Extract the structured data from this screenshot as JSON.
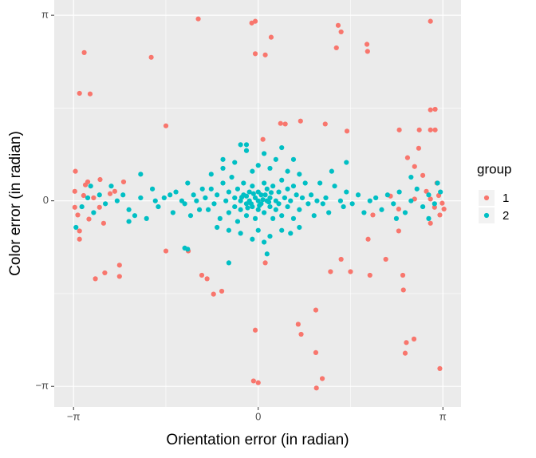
{
  "chart_data": {
    "type": "scatter",
    "x_label": "Orientation error (in radian)",
    "y_label": "Color error (in radian)",
    "legend_title": "group",
    "legend_position": "right",
    "grid": true,
    "xlim": [
      -3.47,
      3.45
    ],
    "ylim": [
      -3.49,
      3.4
    ],
    "xticks": [
      {
        "value": -3.14159,
        "label": "−π"
      },
      0,
      {
        "value": 3.14159,
        "label": "π"
      }
    ],
    "yticks": [
      {
        "value": -3.14159,
        "label": "−π"
      },
      0,
      {
        "value": 3.14159,
        "label": "π"
      }
    ],
    "xminor": [
      -1.5708,
      1.5708
    ],
    "yminor": [
      -1.5708,
      1.5708
    ],
    "series": [
      {
        "name": "1",
        "color": "#F8766D",
        "x": [
          -1.02,
          -0.11,
          -0.05,
          0.22,
          1.36,
          1.41,
          1.85,
          1.86,
          2.93,
          -2.96,
          -3.04,
          -2.86,
          -1.82,
          -0.05,
          0.12,
          1.33,
          -1.57,
          0.08,
          0.38,
          0.46,
          0.72,
          1.14,
          1.51,
          2.4,
          2.74,
          2.93,
          3.01,
          2.93,
          2.73,
          2.54,
          2.66,
          3.01,
          -2.36,
          -2.36,
          -2.77,
          -2.61,
          -1.19,
          -0.96,
          -0.87,
          -0.76,
          -0.62,
          -1.57,
          -0.05,
          -0.08,
          0,
          0.68,
          0.73,
          0.98,
          0.98,
          1.09,
          0.99,
          1.23,
          1.57,
          1.9,
          2.17,
          2.46,
          2.47,
          2.52,
          2.65,
          2.5,
          3.09,
          1.87,
          2.39,
          1.95,
          0.12,
          1.41,
          -3.12,
          -3.12,
          -3.07,
          -3.04,
          -2.97,
          -2.9,
          -2.8,
          -2.7,
          -2.63,
          -2.52,
          -2.44,
          -3.11,
          -3.04,
          -2.69,
          -2.88,
          -2.94,
          -2.29,
          2.86,
          2.93,
          3.0,
          3.07,
          3.13,
          2.8,
          3.04,
          3.09,
          2.66,
          2.93,
          3.16,
          2.39,
          2.25
        ],
        "values": [
          3.08,
          3.01,
          3.04,
          2.77,
          2.97,
          2.86,
          2.65,
          2.53,
          3.04,
          2.51,
          1.82,
          1.81,
          2.43,
          2.49,
          2.47,
          2.59,
          1.27,
          1.04,
          1.31,
          1.3,
          1.35,
          1.3,
          1.18,
          1.2,
          1.2,
          1.54,
          1.55,
          1.2,
          0.89,
          0.73,
          0.58,
          1.2,
          -1.09,
          -1.28,
          -1.32,
          -1.22,
          -0.85,
          -1.26,
          -1.32,
          -1.58,
          -1.53,
          -0.85,
          -2.19,
          -3.05,
          -3.08,
          -2.09,
          -2.26,
          -1.85,
          -2.57,
          -3.01,
          -3.17,
          -1.2,
          -1.2,
          -1.26,
          -0.99,
          -1.26,
          -1.51,
          -2.4,
          -2.34,
          -2.58,
          -2.84,
          -0.65,
          -0.51,
          -0.24,
          -1.05,
          -0.99,
          0.16,
          -0.11,
          -0.24,
          -0.51,
          0.09,
          0.32,
          0.05,
          -0.11,
          -0.38,
          0.12,
          0.16,
          0.5,
          -0.65,
          0.36,
          -0.31,
          0.27,
          0.32,
          0.16,
          0.03,
          -0.11,
          0.09,
          -0.04,
          0.43,
          0.3,
          -0.24,
          0.03,
          -0.38,
          -0.14,
          -0.14,
          0.08
        ]
      },
      {
        "name": "2",
        "color": "#00BFC4",
        "x": [
          -3.1,
          -3.0,
          -2.9,
          -2.8,
          -2.7,
          -2.6,
          -2.5,
          -2.4,
          -2.3,
          -2.2,
          -2.1,
          -2.0,
          -1.9,
          -1.8,
          -1.75,
          -1.7,
          -1.6,
          -1.5,
          -1.45,
          -1.4,
          -1.3,
          -1.25,
          -1.2,
          -1.15,
          -1.1,
          -1.05,
          -1.0,
          -0.95,
          -1.2,
          -1.25,
          -0.5,
          -0.6,
          -0.3,
          -2.2,
          -2.85,
          -2.0,
          3.1,
          3.0,
          2.9,
          2.8,
          2.7,
          2.6,
          2.5,
          2.4,
          2.3,
          2.2,
          2.1,
          2.0,
          1.9,
          1.8,
          1.7,
          1.6,
          1.5,
          1.45,
          1.4,
          1.3,
          1.2,
          1.15,
          1.1,
          1.05,
          1.0,
          0.95,
          1.5,
          2.6,
          2.9,
          3.05,
          1.25,
          2.35,
          -0.9,
          -0.85,
          -0.8,
          -0.75,
          -0.7,
          -0.65,
          -0.6,
          -0.55,
          -0.5,
          -0.5,
          -0.45,
          -0.4,
          -0.4,
          -0.35,
          -0.35,
          -0.3,
          -0.3,
          -0.25,
          -0.25,
          -0.2,
          -0.2,
          -0.15,
          -0.15,
          -0.1,
          -0.1,
          -0.05,
          -0.05,
          0.0,
          0.0,
          0.0,
          0.05,
          0.05,
          0.1,
          0.1,
          0.15,
          0.15,
          0.2,
          0.2,
          0.25,
          0.25,
          0.3,
          0.3,
          0.35,
          0.35,
          0.4,
          0.4,
          0.45,
          0.5,
          0.5,
          0.55,
          0.6,
          0.6,
          0.65,
          0.7,
          0.75,
          0.8,
          0.85,
          0.9,
          -0.2,
          -0.12,
          0.08,
          0.12,
          -0.08,
          0.02,
          0.18,
          -0.18,
          0.22,
          -0.28,
          -0.4,
          -0.2,
          0.1,
          0.3,
          0.5,
          -0.6,
          0.0,
          0.2,
          -0.1,
          0.7,
          -0.8,
          0.4,
          -0.2,
          0.6,
          -0.3,
          0.0,
          0.2,
          0.4,
          -0.5,
          0.7,
          0.1,
          -0.1,
          0.15,
          -0.7,
          0.55
        ],
        "values": [
          -0.45,
          -0.1,
          0.05,
          -0.2,
          0.1,
          -0.05,
          0.25,
          0.0,
          0.1,
          -0.15,
          -0.25,
          0.05,
          -0.3,
          0.2,
          0.0,
          -0.1,
          0.05,
          0.1,
          -0.2,
          0.15,
          0.0,
          -0.05,
          0.3,
          -0.25,
          0.1,
          0.0,
          -0.15,
          0.2,
          -0.82,
          -0.8,
          -1.05,
          0.7,
          0.95,
          -0.35,
          0.25,
          0.45,
          0.15,
          -0.05,
          0.1,
          -0.1,
          0.2,
          0.0,
          -0.2,
          0.15,
          -0.05,
          0.1,
          -0.15,
          0.05,
          0.0,
          -0.2,
          0.1,
          -0.05,
          0.15,
          -0.1,
          0.0,
          0.25,
          -0.2,
          0.05,
          -0.05,
          0.3,
          0.0,
          -0.25,
          0.65,
          0.4,
          -0.3,
          0.3,
          0.5,
          -0.3,
          0.05,
          -0.15,
          0.2,
          -0.05,
          0.1,
          -0.3,
          0.3,
          0.0,
          -0.2,
          0.15,
          0.4,
          -0.1,
          0.05,
          -0.35,
          0.2,
          0.0,
          -0.15,
          0.1,
          0.3,
          -0.05,
          -0.25,
          0.15,
          0.0,
          -0.1,
          0.25,
          0.05,
          -0.3,
          0.0,
          0.15,
          -0.15,
          0.1,
          -0.05,
          0.3,
          -0.2,
          0.0,
          0.2,
          -0.1,
          0.05,
          -0.3,
          0.25,
          0.0,
          -0.15,
          0.15,
          -0.05,
          0.35,
          -0.25,
          0.05,
          -0.1,
          0.2,
          0.0,
          -0.3,
          0.25,
          0.1,
          -0.15,
          0.05,
          0.3,
          -0.05,
          0.1,
          0.08,
          -0.05,
          0.02,
          0.1,
          0.12,
          -0.08,
          -0.02,
          -0.12,
          0.14,
          0.06,
          0.65,
          0.85,
          0.8,
          0.7,
          0.5,
          0.55,
          0.6,
          0.55,
          0.5,
          0.45,
          0.45,
          0.9,
          0.95,
          0.7,
          -0.55,
          -0.5,
          -0.6,
          -0.5,
          -0.5,
          -0.45,
          -0.7,
          -0.65,
          -0.9,
          -0.45,
          -0.55
        ]
      }
    ]
  }
}
